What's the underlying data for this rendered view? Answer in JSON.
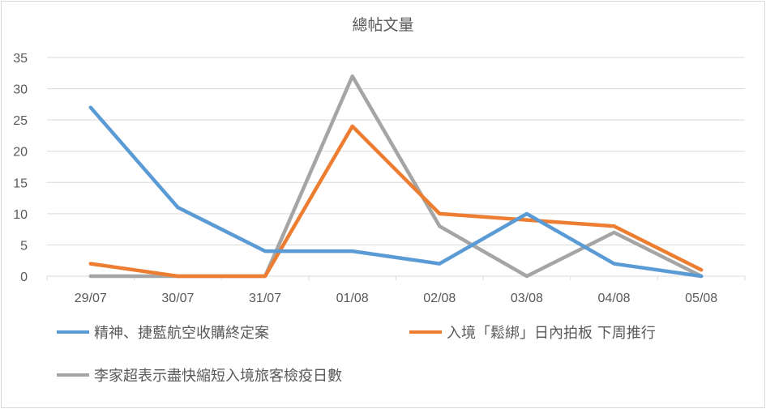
{
  "chart_data": {
    "type": "line",
    "title": "總帖文量",
    "categories": [
      "29/07",
      "30/07",
      "31/07",
      "01/08",
      "02/08",
      "03/08",
      "04/08",
      "05/08"
    ],
    "yticks": [
      "0",
      "5",
      "10",
      "15",
      "20",
      "25",
      "30",
      "35"
    ],
    "ylim": [
      0,
      35
    ],
    "grid": true,
    "legend_position": "bottom",
    "series": [
      {
        "name": "精神、捷藍航空收購終定案",
        "color": "#5b9bd5",
        "values": [
          27,
          11,
          4,
          4,
          2,
          10,
          2,
          0
        ]
      },
      {
        "name": "入境「鬆綁」日內拍板 下周推行",
        "color": "#ed7d31",
        "values": [
          2,
          0,
          0,
          24,
          10,
          9,
          8,
          1
        ]
      },
      {
        "name": "李家超表示盡快縮短入境旅客檢疫日數",
        "color": "#a5a5a5",
        "values": [
          0,
          0,
          0,
          32,
          8,
          0,
          7,
          0
        ]
      }
    ]
  }
}
